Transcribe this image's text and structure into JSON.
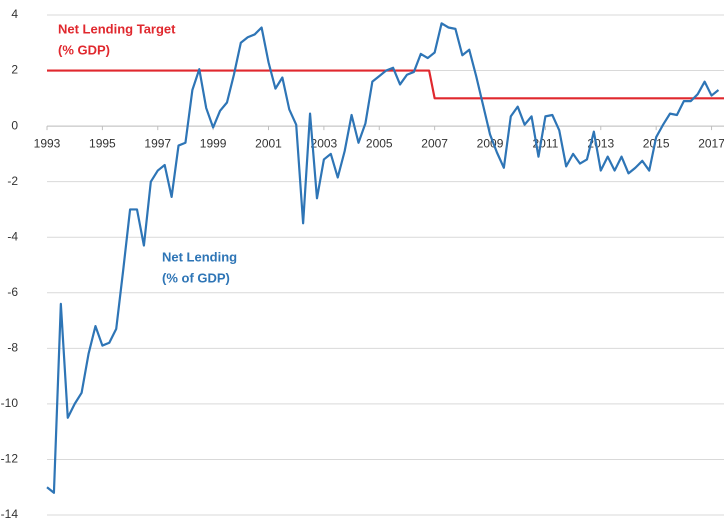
{
  "chart_data": {
    "type": "line",
    "xlim": [
      1993,
      2017.45
    ],
    "xticks": [
      1993,
      1995,
      1997,
      1999,
      2001,
      2003,
      2005,
      2007,
      2009,
      2011,
      2013,
      2015,
      2017
    ],
    "ylim": [
      -14,
      4
    ],
    "yticks": [
      -14,
      -12,
      -10,
      -8,
      -6,
      -4,
      -2,
      0,
      2,
      4
    ],
    "grid": true,
    "series": [
      {
        "label_lines": [
          "Net Lending Target",
          "(% GDP)"
        ],
        "color": "#e0282e",
        "x": [
          1993,
          2006.8,
          2007,
          2017.45
        ],
        "values": [
          2,
          2,
          1,
          1
        ]
      },
      {
        "label_lines": [
          "Net Lending",
          "(% of GDP)"
        ],
        "color": "#2e75b6",
        "x": [
          1993,
          1993.25,
          1993.5,
          1993.75,
          1994,
          1994.25,
          1994.5,
          1994.75,
          1995,
          1995.25,
          1995.5,
          1995.75,
          1996,
          1996.25,
          1996.5,
          1996.75,
          1997,
          1997.25,
          1997.5,
          1997.75,
          1998,
          1998.25,
          1998.5,
          1998.75,
          1999,
          1999.25,
          1999.5,
          1999.75,
          2000,
          2000.25,
          2000.5,
          2000.75,
          2001,
          2001.25,
          2001.5,
          2001.75,
          2002,
          2002.25,
          2002.5,
          2002.75,
          2003,
          2003.25,
          2003.5,
          2003.75,
          2004,
          2004.25,
          2004.5,
          2004.75,
          2005,
          2005.25,
          2005.5,
          2005.75,
          2006,
          2006.25,
          2006.5,
          2006.75,
          2007,
          2007.25,
          2007.5,
          2007.75,
          2008,
          2008.25,
          2008.5,
          2008.75,
          2009,
          2009.25,
          2009.5,
          2009.75,
          2010,
          2010.25,
          2010.5,
          2010.75,
          2011,
          2011.25,
          2011.5,
          2011.75,
          2012,
          2012.25,
          2012.5,
          2012.75,
          2013,
          2013.25,
          2013.5,
          2013.75,
          2014,
          2014.25,
          2014.5,
          2014.75,
          2015,
          2015.25,
          2015.5,
          2015.75,
          2016,
          2016.25,
          2016.5,
          2016.75,
          2017,
          2017.25
        ],
        "values": [
          -13.0,
          -13.2,
          -6.4,
          -10.5,
          -10.0,
          -9.6,
          -8.2,
          -7.2,
          -7.9,
          -7.8,
          -7.3,
          -5.2,
          -3.0,
          -3.0,
          -4.3,
          -2.0,
          -1.6,
          -1.4,
          -2.55,
          -0.7,
          -0.6,
          1.3,
          2.05,
          0.65,
          -0.05,
          0.55,
          0.85,
          1.85,
          3.0,
          3.2,
          3.3,
          3.55,
          2.3,
          1.35,
          1.75,
          0.6,
          0.05,
          -3.5,
          0.45,
          -2.6,
          -1.2,
          -1.0,
          -1.85,
          -0.9,
          0.4,
          -0.6,
          0.1,
          1.6,
          1.8,
          2.0,
          2.1,
          1.5,
          1.85,
          1.95,
          2.6,
          2.45,
          2.65,
          3.7,
          3.55,
          3.5,
          2.55,
          2.75,
          1.8,
          0.75,
          -0.3,
          -0.95,
          -1.5,
          0.35,
          0.7,
          0.05,
          0.35,
          -1.1,
          0.35,
          0.4,
          -0.15,
          -1.45,
          -1.0,
          -1.35,
          -1.2,
          -0.2,
          -1.6,
          -1.1,
          -1.6,
          -1.1,
          -1.7,
          -1.5,
          -1.25,
          -1.6,
          -0.4,
          0.05,
          0.45,
          0.4,
          0.9,
          0.9,
          1.15,
          1.6,
          1.1,
          1.3
        ]
      }
    ]
  }
}
